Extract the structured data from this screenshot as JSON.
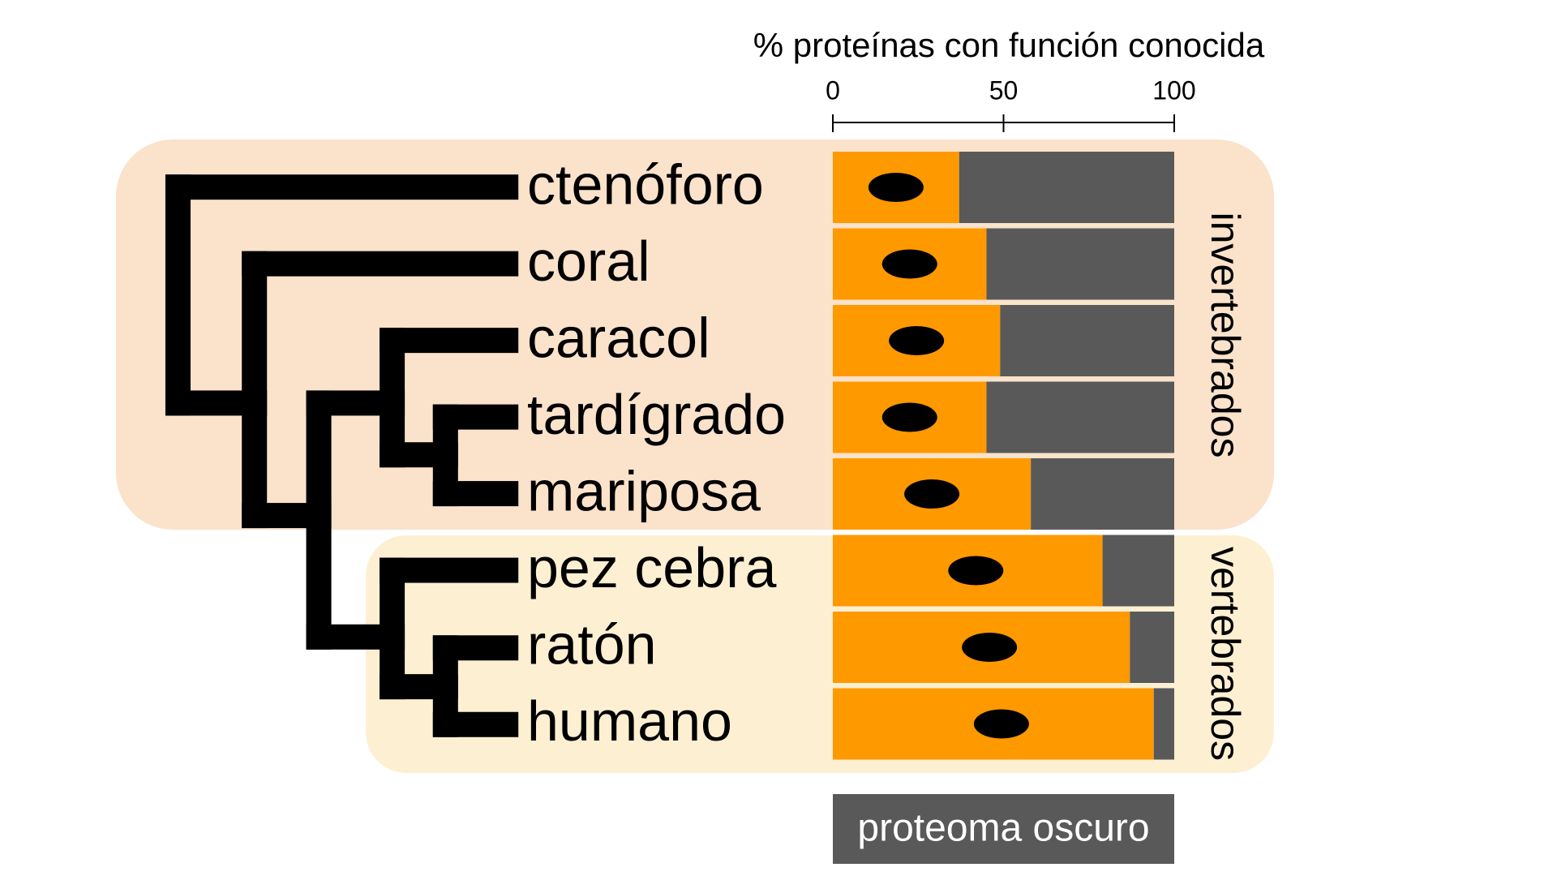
{
  "chart_data": {
    "type": "bar",
    "title": "% proteínas con función conocida",
    "categories": [
      "ctenóforo",
      "coral",
      "caracol",
      "tardígrado",
      "mariposa",
      "pez cebra",
      "ratón",
      "humano"
    ],
    "series": [
      {
        "color": "#ff9900",
        "values": [
          37,
          45,
          49,
          45,
          58,
          79,
          87,
          94
        ]
      },
      {
        "name": "proteoma oscuro",
        "color": "#595959",
        "values": [
          63,
          55,
          51,
          55,
          42,
          21,
          13,
          6
        ]
      }
    ],
    "groups": [
      "invertebrados",
      "vertebrados"
    ],
    "xlim": [
      0,
      100
    ],
    "xticks": [
      0,
      50,
      100
    ],
    "stacked": true
  }
}
